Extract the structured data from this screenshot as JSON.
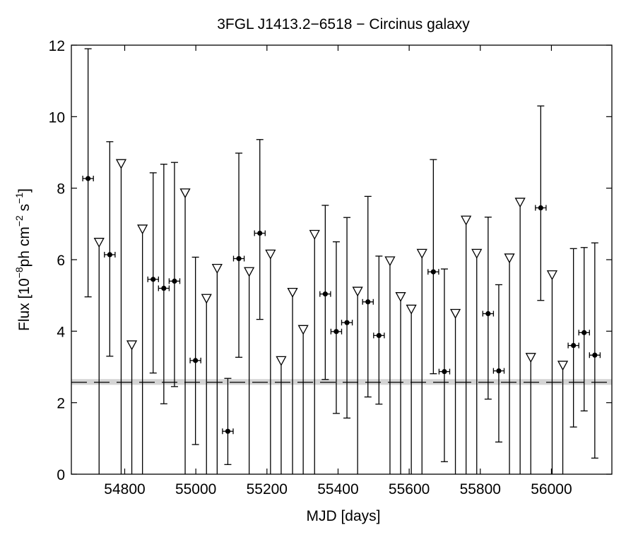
{
  "chart_data": {
    "type": "scatter",
    "title": "3FGL J1413.2−6518 − Circinus galaxy",
    "xlabel": "MJD [days]",
    "ylabel": {
      "prefix": "Flux [10",
      "exp1": "−8",
      "mid": "ph cm",
      "exp2": "−2",
      "mid2": " s",
      "exp3": "−1",
      "suffix": "]"
    },
    "xlim": [
      54650,
      56170
    ],
    "ylim": [
      0,
      12
    ],
    "xticks": [
      54800,
      55000,
      55200,
      55400,
      55600,
      55800,
      56000
    ],
    "yticks": [
      0,
      2,
      4,
      6,
      8,
      10,
      12
    ],
    "grid": false,
    "reference_level": {
      "value": 2.57,
      "band": [
        2.5,
        2.66
      ],
      "style": "dashed",
      "band_color": "#d4d4d4"
    },
    "detections": [
      {
        "x": 54697,
        "y": 8.27,
        "ylo": 4.96,
        "yhi": 11.9
      },
      {
        "x": 54758,
        "y": 6.14,
        "ylo": 3.3,
        "yhi": 9.3
      },
      {
        "x": 54880,
        "y": 5.45,
        "ylo": 2.83,
        "yhi": 8.43
      },
      {
        "x": 54910,
        "y": 5.2,
        "ylo": 1.97,
        "yhi": 8.67
      },
      {
        "x": 54940,
        "y": 5.4,
        "ylo": 2.45,
        "yhi": 8.72
      },
      {
        "x": 54999,
        "y": 3.18,
        "ylo": 0.83,
        "yhi": 6.07
      },
      {
        "x": 55090,
        "y": 1.2,
        "ylo": 0.27,
        "yhi": 2.68
      },
      {
        "x": 55121,
        "y": 6.03,
        "ylo": 3.27,
        "yhi": 8.98
      },
      {
        "x": 55180,
        "y": 6.74,
        "ylo": 4.33,
        "yhi": 9.36
      },
      {
        "x": 55364,
        "y": 5.04,
        "ylo": 2.65,
        "yhi": 7.52
      },
      {
        "x": 55395,
        "y": 3.99,
        "ylo": 1.7,
        "yhi": 6.5
      },
      {
        "x": 55425,
        "y": 4.24,
        "ylo": 1.57,
        "yhi": 7.18
      },
      {
        "x": 55484,
        "y": 4.82,
        "ylo": 2.16,
        "yhi": 7.77
      },
      {
        "x": 55515,
        "y": 3.88,
        "ylo": 1.96,
        "yhi": 6.1
      },
      {
        "x": 55668,
        "y": 5.66,
        "ylo": 2.81,
        "yhi": 8.8
      },
      {
        "x": 55699,
        "y": 2.87,
        "ylo": 0.35,
        "yhi": 5.74
      },
      {
        "x": 55822,
        "y": 4.49,
        "ylo": 2.1,
        "yhi": 7.19
      },
      {
        "x": 55852,
        "y": 2.89,
        "ylo": 0.9,
        "yhi": 5.3
      },
      {
        "x": 55970,
        "y": 7.45,
        "ylo": 4.86,
        "yhi": 10.3
      },
      {
        "x": 56062,
        "y": 3.6,
        "ylo": 1.32,
        "yhi": 6.31
      },
      {
        "x": 56092,
        "y": 3.96,
        "ylo": 1.77,
        "yhi": 6.34
      },
      {
        "x": 56122,
        "y": 3.33,
        "ylo": 0.45,
        "yhi": 6.47
      }
    ],
    "upper_limits": [
      {
        "x": 54728,
        "y": 6.5
      },
      {
        "x": 54790,
        "y": 8.7
      },
      {
        "x": 54820,
        "y": 3.63
      },
      {
        "x": 54850,
        "y": 6.87
      },
      {
        "x": 54970,
        "y": 7.88
      },
      {
        "x": 55030,
        "y": 4.93
      },
      {
        "x": 55060,
        "y": 5.77
      },
      {
        "x": 55150,
        "y": 5.68
      },
      {
        "x": 55210,
        "y": 6.17
      },
      {
        "x": 55240,
        "y": 3.19
      },
      {
        "x": 55272,
        "y": 5.1
      },
      {
        "x": 55302,
        "y": 4.06
      },
      {
        "x": 55334,
        "y": 6.72
      },
      {
        "x": 55455,
        "y": 5.13
      },
      {
        "x": 55546,
        "y": 5.98
      },
      {
        "x": 55576,
        "y": 4.98
      },
      {
        "x": 55606,
        "y": 4.63
      },
      {
        "x": 55636,
        "y": 6.19
      },
      {
        "x": 55730,
        "y": 4.51
      },
      {
        "x": 55760,
        "y": 7.12
      },
      {
        "x": 55790,
        "y": 6.19
      },
      {
        "x": 55882,
        "y": 6.06
      },
      {
        "x": 55912,
        "y": 7.62
      },
      {
        "x": 55942,
        "y": 3.28
      },
      {
        "x": 56002,
        "y": 5.59
      },
      {
        "x": 56032,
        "y": 3.06
      }
    ],
    "bin_halfwidth": 15
  }
}
